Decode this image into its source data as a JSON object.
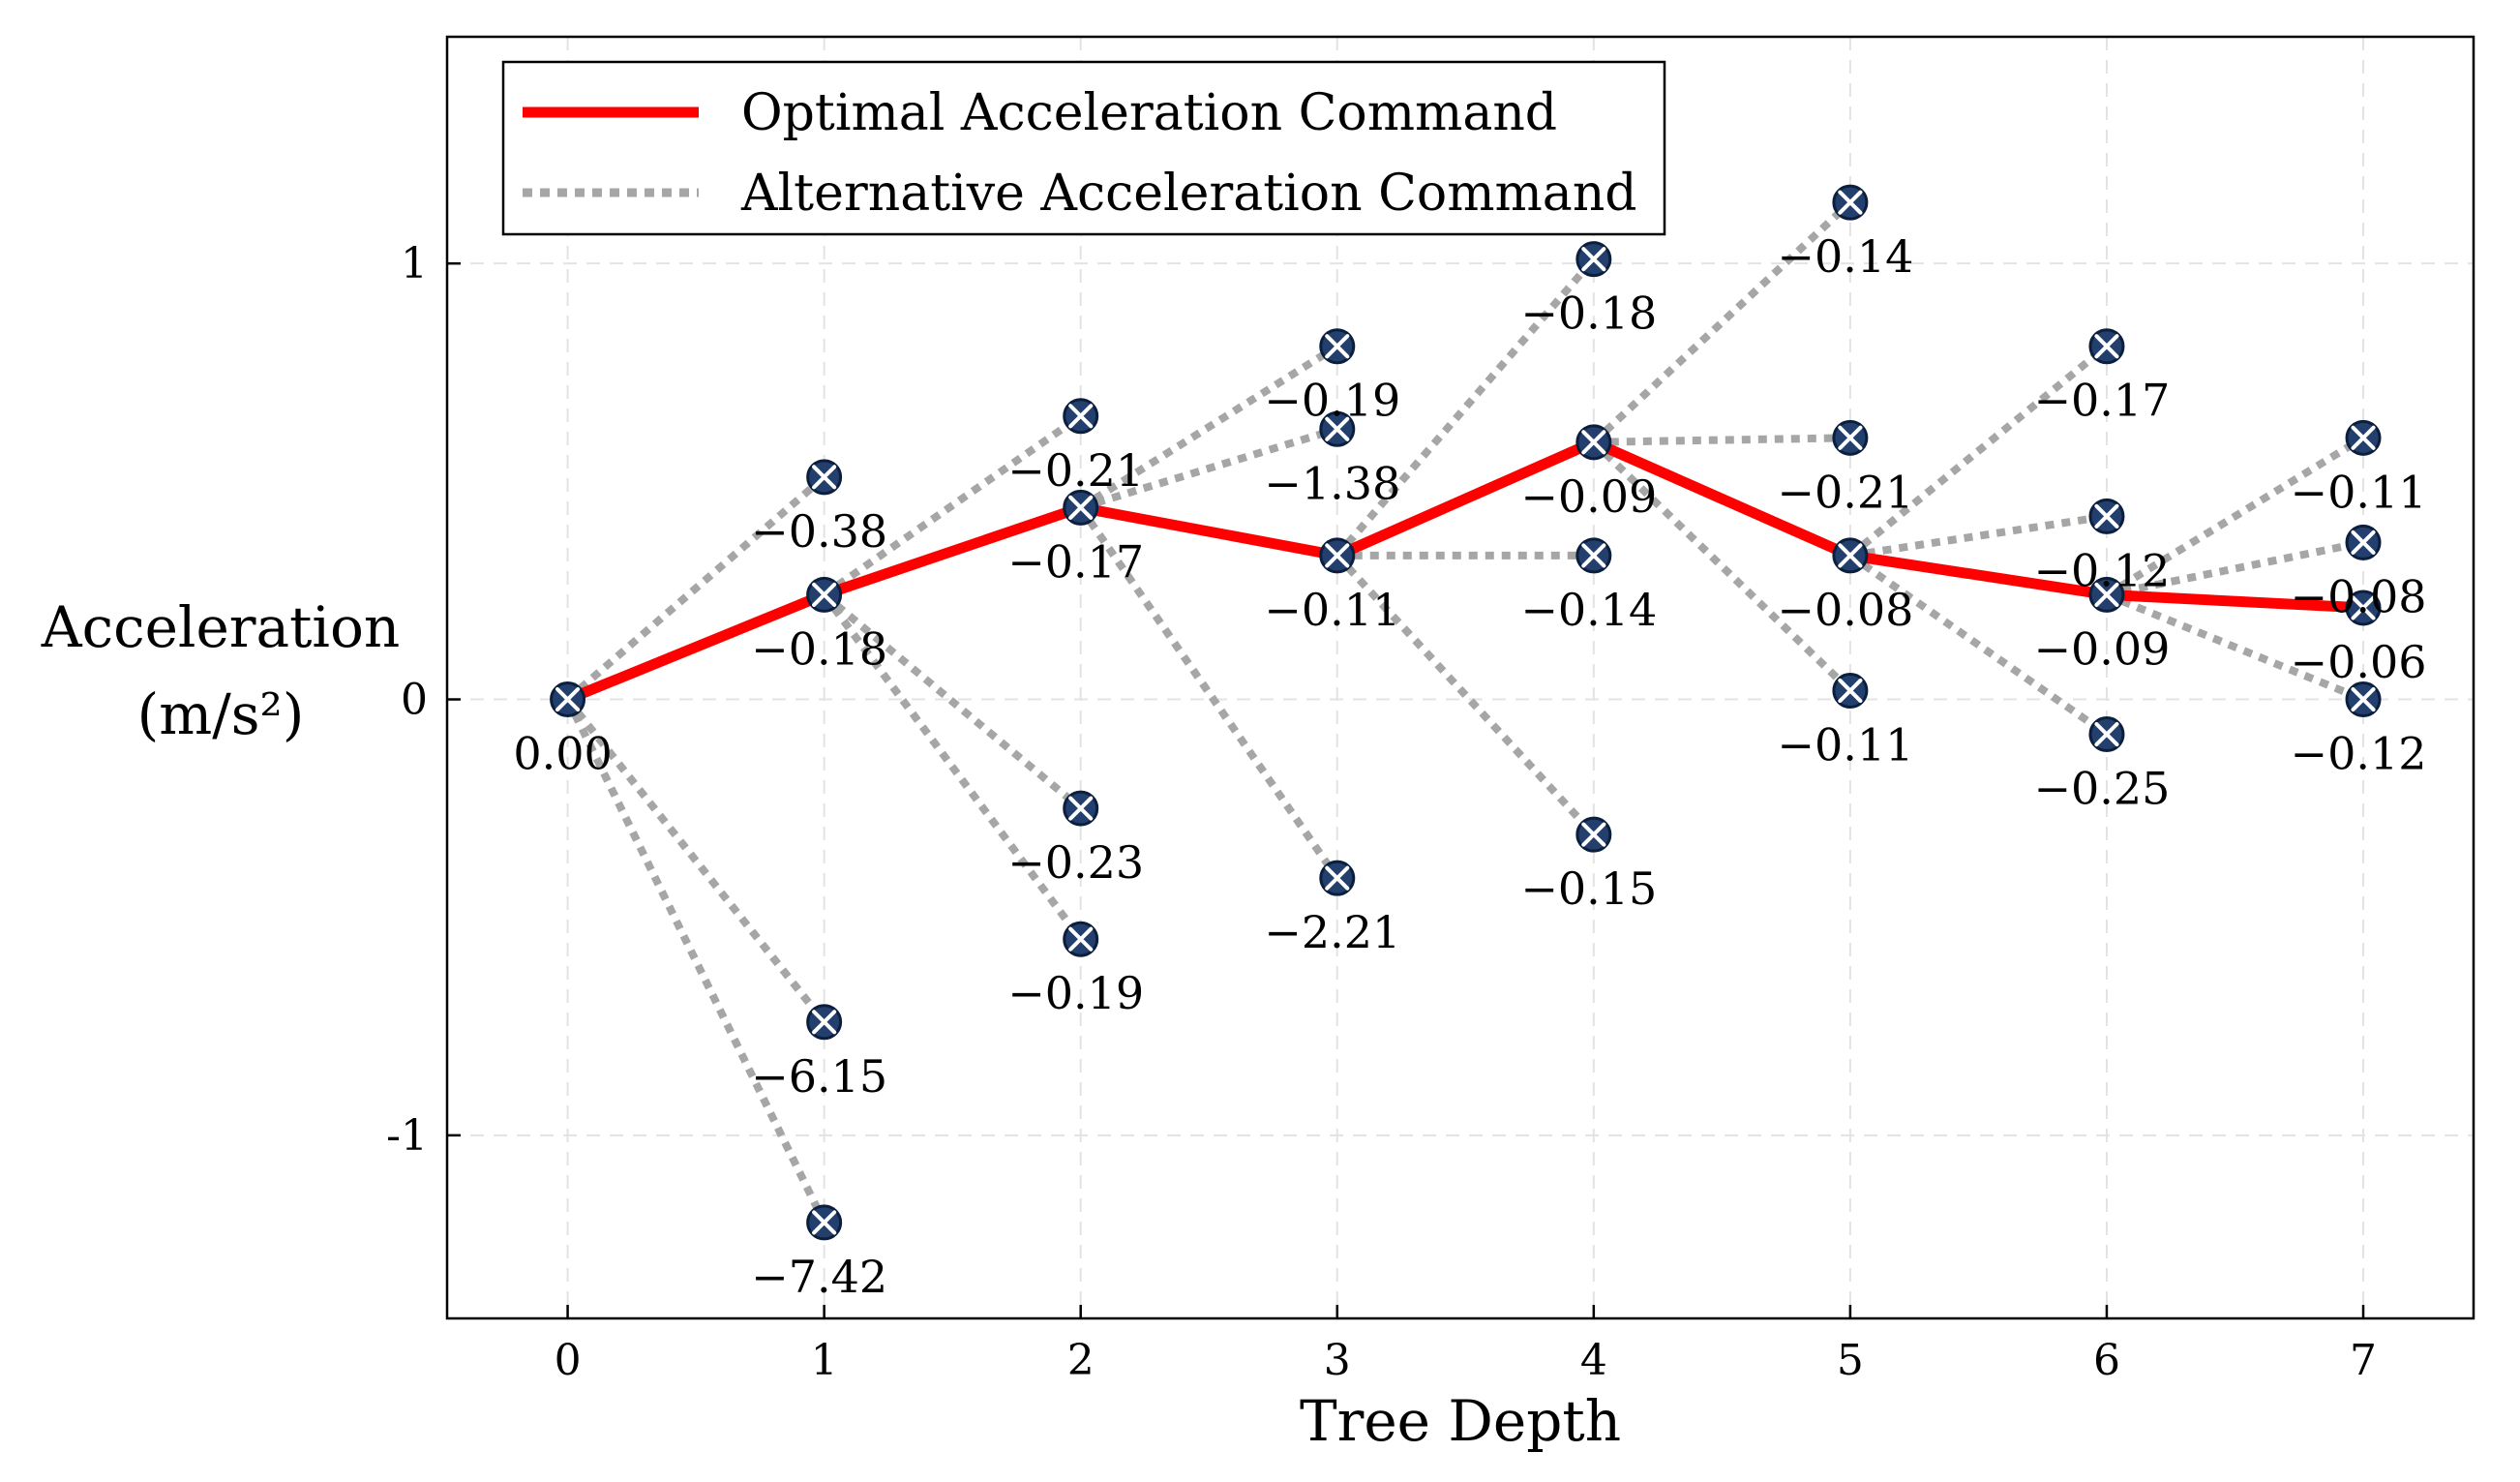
{
  "chart_data": {
    "type": "line",
    "xlabel": "Tree Depth",
    "ylabel": [
      "Acceleration",
      "(m/s²)"
    ],
    "xlim": [
      -0.47,
      7.43
    ],
    "ylim": [
      -1.42,
      1.52
    ],
    "xticks": [
      0,
      1,
      2,
      3,
      4,
      5,
      6,
      7
    ],
    "yticks": [
      {
        "value": 1,
        "label": "1"
      },
      {
        "value": 0,
        "label": "0"
      },
      {
        "value": -1,
        "label": "-1"
      }
    ],
    "grid": true,
    "legend": {
      "position": "top-left",
      "entries": [
        {
          "label": "Optimal Acceleration Command",
          "style": "solid",
          "color": "#ff0000"
        },
        {
          "label": "Alternative Acceleration Command",
          "style": "dotted",
          "color": "#a6a6a6"
        }
      ]
    },
    "colors": {
      "optimal": "#ff0000",
      "alternative": "#a6a6a6",
      "marker": "#233f6e"
    },
    "optimal_path": [
      {
        "x": 0,
        "y": 0.0
      },
      {
        "x": 1,
        "y": 0.24
      },
      {
        "x": 2,
        "y": 0.44
      },
      {
        "x": 3,
        "y": 0.33
      },
      {
        "x": 4,
        "y": 0.59
      },
      {
        "x": 5,
        "y": 0.33
      },
      {
        "x": 6,
        "y": 0.24
      },
      {
        "x": 7,
        "y": 0.21
      }
    ],
    "nodes": [
      {
        "x": 0,
        "y": 0.0,
        "label": "0.00",
        "parent": null
      },
      {
        "x": 1,
        "y": 0.51,
        "label": "−0.38",
        "parent": [
          0,
          0.0
        ]
      },
      {
        "x": 1,
        "y": 0.24,
        "label": "−0.18",
        "parent": [
          0,
          0.0
        ]
      },
      {
        "x": 1,
        "y": -0.74,
        "label": "−6.15",
        "parent": [
          0,
          0.0
        ]
      },
      {
        "x": 1,
        "y": -1.2,
        "label": "−7.42",
        "parent": [
          0,
          0.0
        ]
      },
      {
        "x": 2,
        "y": 0.65,
        "label": "−0.21",
        "parent": [
          1,
          0.24
        ]
      },
      {
        "x": 2,
        "y": 0.44,
        "label": "−0.17",
        "parent": [
          1,
          0.24
        ]
      },
      {
        "x": 2,
        "y": -0.25,
        "label": "−0.23",
        "parent": [
          1,
          0.24
        ]
      },
      {
        "x": 2,
        "y": -0.55,
        "label": "−0.19",
        "parent": [
          1,
          0.24
        ]
      },
      {
        "x": 3,
        "y": 0.81,
        "label": "−0.19",
        "parent": [
          2,
          0.44
        ]
      },
      {
        "x": 3,
        "y": 0.62,
        "label": "−1.38",
        "parent": [
          2,
          0.44
        ]
      },
      {
        "x": 3,
        "y": 0.33,
        "label": "−0.11",
        "parent": [
          2,
          0.44
        ]
      },
      {
        "x": 3,
        "y": -0.41,
        "label": "−2.21",
        "parent": [
          2,
          0.44
        ]
      },
      {
        "x": 4,
        "y": 1.01,
        "label": "−0.18",
        "parent": [
          3,
          0.33
        ]
      },
      {
        "x": 4,
        "y": 0.59,
        "label": "−0.09",
        "parent": [
          3,
          0.33
        ]
      },
      {
        "x": 4,
        "y": 0.33,
        "label": "−0.14",
        "parent": [
          3,
          0.33
        ]
      },
      {
        "x": 4,
        "y": -0.31,
        "label": "−0.15",
        "parent": [
          3,
          0.33
        ]
      },
      {
        "x": 5,
        "y": 1.14,
        "label": "−0.14",
        "parent": [
          4,
          0.59
        ]
      },
      {
        "x": 5,
        "y": 0.6,
        "label": "−0.21",
        "parent": [
          4,
          0.59
        ]
      },
      {
        "x": 5,
        "y": 0.33,
        "label": "−0.08",
        "parent": [
          4,
          0.59
        ]
      },
      {
        "x": 5,
        "y": 0.02,
        "label": "−0.11",
        "parent": [
          4,
          0.59
        ]
      },
      {
        "x": 6,
        "y": 0.81,
        "label": "−0.17",
        "parent": [
          5,
          0.33
        ]
      },
      {
        "x": 6,
        "y": 0.42,
        "label": "−0.12",
        "parent": [
          5,
          0.33
        ]
      },
      {
        "x": 6,
        "y": 0.24,
        "label": "−0.09",
        "parent": [
          5,
          0.33
        ]
      },
      {
        "x": 6,
        "y": -0.08,
        "label": "−0.25",
        "parent": [
          5,
          0.33
        ]
      },
      {
        "x": 7,
        "y": 0.6,
        "label": "−0.11",
        "parent": [
          6,
          0.24
        ]
      },
      {
        "x": 7,
        "y": 0.36,
        "label": "−0.08",
        "parent": [
          6,
          0.24
        ]
      },
      {
        "x": 7,
        "y": 0.21,
        "label": "−0.06",
        "parent": [
          6,
          0.24
        ]
      },
      {
        "x": 7,
        "y": 0.0,
        "label": "−0.12",
        "parent": [
          6,
          0.24
        ]
      }
    ]
  }
}
